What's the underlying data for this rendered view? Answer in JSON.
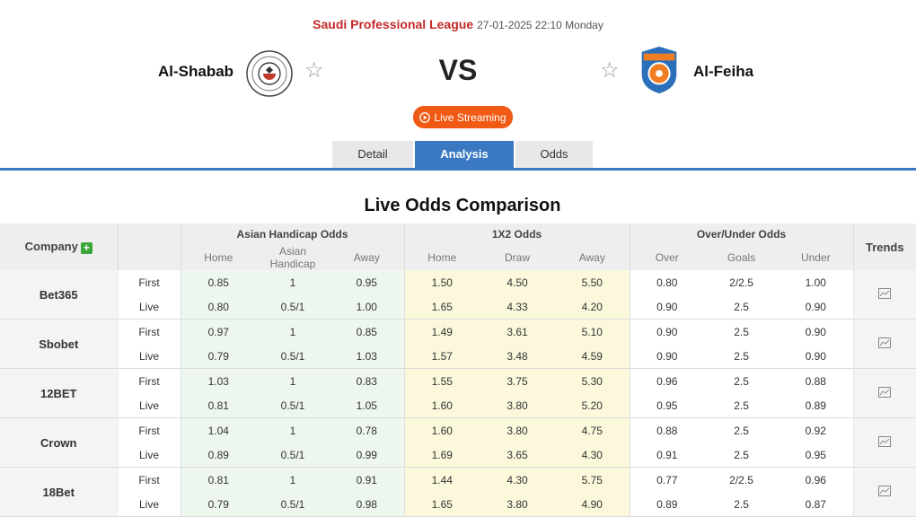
{
  "header": {
    "league": "Saudi Professional League",
    "datetime": "27-01-2025 22:10 Monday",
    "home_team": "Al-Shabab",
    "away_team": "Al-Feiha",
    "vs": "VS",
    "live_streaming": "Live Streaming"
  },
  "tabs": [
    {
      "label": "Detail",
      "active": false
    },
    {
      "label": "Analysis",
      "active": true
    },
    {
      "label": "Odds",
      "active": false
    }
  ],
  "section_title": "Live Odds Comparison",
  "table": {
    "company_header": "Company",
    "trends_header": "Trends",
    "groups": [
      {
        "label": "Asian Handicap Odds",
        "columns": [
          "Home",
          "Asian Handicap",
          "Away"
        ]
      },
      {
        "label": "1X2 Odds",
        "columns": [
          "Home",
          "Draw",
          "Away"
        ]
      },
      {
        "label": "Over/Under Odds",
        "columns": [
          "Over",
          "Goals",
          "Under"
        ]
      }
    ],
    "companies": [
      {
        "name": "Bet365",
        "rows": [
          {
            "type": "First",
            "ah": [
              "0.85",
              "1",
              "0.95"
            ],
            "x12": [
              "1.50",
              "4.50",
              "5.50"
            ],
            "ou": [
              "0.80",
              "2/2.5",
              "1.00"
            ]
          },
          {
            "type": "Live",
            "ah": [
              "0.80",
              "0.5/1",
              "1.00"
            ],
            "x12": [
              "1.65",
              "4.33",
              "4.20"
            ],
            "ou": [
              "0.90",
              "2.5",
              "0.90"
            ]
          }
        ]
      },
      {
        "name": "Sbobet",
        "rows": [
          {
            "type": "First",
            "ah": [
              "0.97",
              "1",
              "0.85"
            ],
            "x12": [
              "1.49",
              "3.61",
              "5.10"
            ],
            "ou": [
              "0.90",
              "2.5",
              "0.90"
            ]
          },
          {
            "type": "Live",
            "ah": [
              "0.79",
              "0.5/1",
              "1.03"
            ],
            "x12": [
              "1.57",
              "3.48",
              "4.59"
            ],
            "ou": [
              "0.90",
              "2.5",
              "0.90"
            ]
          }
        ]
      },
      {
        "name": "12BET",
        "rows": [
          {
            "type": "First",
            "ah": [
              "1.03",
              "1",
              "0.83"
            ],
            "x12": [
              "1.55",
              "3.75",
              "5.30"
            ],
            "ou": [
              "0.96",
              "2.5",
              "0.88"
            ]
          },
          {
            "type": "Live",
            "ah": [
              "0.81",
              "0.5/1",
              "1.05"
            ],
            "x12": [
              "1.60",
              "3.80",
              "5.20"
            ],
            "ou": [
              "0.95",
              "2.5",
              "0.89"
            ]
          }
        ]
      },
      {
        "name": "Crown",
        "rows": [
          {
            "type": "First",
            "ah": [
              "1.04",
              "1",
              "0.78"
            ],
            "x12": [
              "1.60",
              "3.80",
              "4.75"
            ],
            "ou": [
              "0.88",
              "2.5",
              "0.92"
            ]
          },
          {
            "type": "Live",
            "ah": [
              "0.89",
              "0.5/1",
              "0.99"
            ],
            "x12": [
              "1.69",
              "3.65",
              "4.30"
            ],
            "ou": [
              "0.91",
              "2.5",
              "0.95"
            ]
          }
        ]
      },
      {
        "name": "18Bet",
        "rows": [
          {
            "type": "First",
            "ah": [
              "0.81",
              "1",
              "0.91"
            ],
            "x12": [
              "1.44",
              "4.30",
              "5.75"
            ],
            "ou": [
              "0.77",
              "2/2.5",
              "0.96"
            ]
          },
          {
            "type": "Live",
            "ah": [
              "0.79",
              "0.5/1",
              "0.98"
            ],
            "x12": [
              "1.65",
              "3.80",
              "4.90"
            ],
            "ou": [
              "0.89",
              "2.5",
              "0.87"
            ]
          }
        ]
      }
    ]
  },
  "colors": {
    "league": "#c62828",
    "accent": "#3a78c2",
    "live_button": "#f05a14",
    "ah_bg": "#eef7ee",
    "x12_bg": "#fbf8dc",
    "plus_icon": "#3aa53a"
  },
  "icons": {
    "star": "star-icon",
    "play": "play-circle-icon",
    "plus": "plus-icon",
    "trend": "chart-icon"
  }
}
